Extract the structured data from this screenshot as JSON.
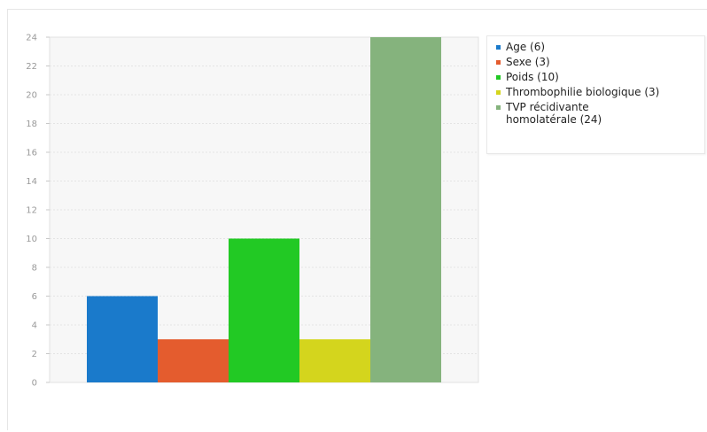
{
  "chart_data": {
    "type": "bar",
    "title": "",
    "xlabel": "",
    "ylabel": "",
    "ylim": [
      0,
      24
    ],
    "yticks": [
      0,
      2,
      4,
      6,
      8,
      10,
      12,
      14,
      16,
      18,
      20,
      22,
      24
    ],
    "grid": true,
    "legend_position": "right",
    "series": [
      {
        "name": "Age (6)",
        "value": 6,
        "color": "#1a7acb"
      },
      {
        "name": "Sexe (3)",
        "value": 3,
        "color": "#e45c2e"
      },
      {
        "name": "Poids (10)",
        "value": 10,
        "color": "#22c924"
      },
      {
        "name": "Thrombophilie biologique (3)",
        "value": 3,
        "color": "#d4d51d"
      },
      {
        "name": "TVP récidivante\nhomolatérale (24)",
        "value": 24,
        "color": "#85b37d"
      }
    ]
  }
}
